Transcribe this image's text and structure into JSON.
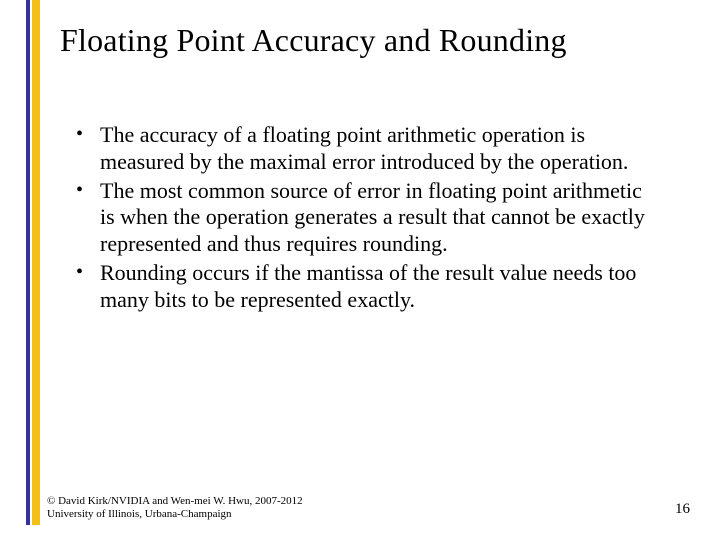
{
  "accent": {
    "blue": "#333399",
    "yellow": "#f2c018"
  },
  "title": "Floating Point Accuracy and Rounding",
  "bullets": [
    "The accuracy of a floating point arithmetic operation is measured by the maximal error introduced by the operation.",
    "The most common source of error in floating point arithmetic is when the operation generates a result that cannot be exactly represented and thus requires rounding.",
    "Rounding occurs if the mantissa of the result value needs too many bits to be represented exactly."
  ],
  "footer_line1": "© David Kirk/NVIDIA and Wen-mei W. Hwu, 2007-2012",
  "footer_line2": "University of Illinois, Urbana-Champaign",
  "page_number": "16",
  "typography": {
    "title_fontsize": 32,
    "body_fontsize": 22,
    "footer_fontsize": 11,
    "font_family": "Times New Roman"
  }
}
